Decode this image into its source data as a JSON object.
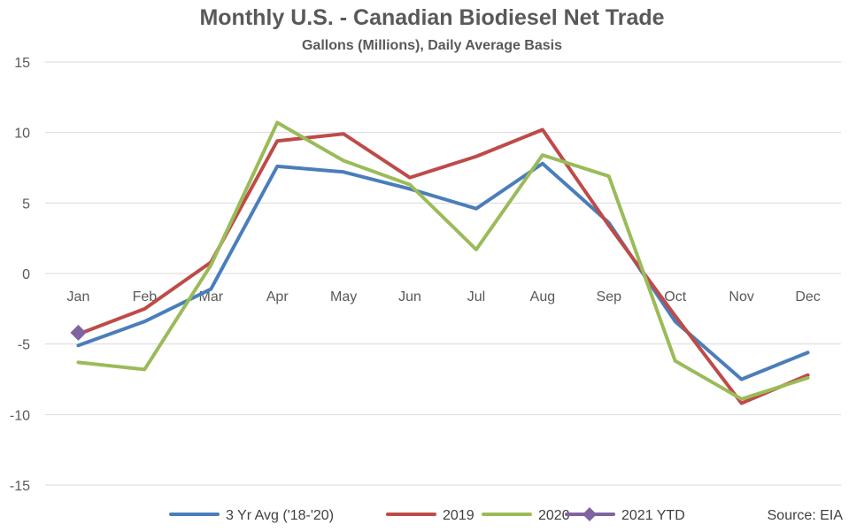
{
  "chart_data": {
    "type": "line",
    "title": "Monthly U.S. - Canadian Biodiesel Net Trade",
    "subtitle": "Gallons (Millions), Daily Average Basis",
    "categories": [
      "Jan",
      "Feb",
      "Mar",
      "Apr",
      "May",
      "Jun",
      "Jul",
      "Aug",
      "Sep",
      "Oct",
      "Nov",
      "Dec"
    ],
    "ylim": [
      -15,
      15
    ],
    "yticks": [
      15,
      10,
      5,
      0,
      -5,
      -10,
      -15
    ],
    "grid": true,
    "legend_position": "bottom",
    "source": "Source: EIA",
    "series": [
      {
        "name": "3 Yr Avg ('18-'20)",
        "color": "#4A7EBB",
        "marker": "none",
        "values": [
          -5.1,
          -3.4,
          -1.1,
          7.6,
          7.2,
          6.0,
          4.6,
          7.8,
          3.6,
          -3.4,
          -7.5,
          -5.6
        ]
      },
      {
        "name": "2019",
        "color": "#BE4B48",
        "marker": "none",
        "values": [
          -4.3,
          -2.5,
          0.8,
          9.4,
          9.9,
          6.8,
          8.3,
          10.2,
          3.4,
          -3.0,
          -9.2,
          -7.2
        ]
      },
      {
        "name": "2020",
        "color": "#9BBB59",
        "marker": "none",
        "values": [
          -6.3,
          -6.8,
          0.6,
          10.7,
          8.0,
          6.3,
          1.7,
          8.4,
          6.9,
          -6.2,
          -8.9,
          -7.4
        ]
      },
      {
        "name": "2021 YTD",
        "color": "#8064A2",
        "marker": "diamond",
        "values": [
          -4.2,
          null,
          null,
          null,
          null,
          null,
          null,
          null,
          null,
          null,
          null,
          null
        ]
      }
    ]
  }
}
